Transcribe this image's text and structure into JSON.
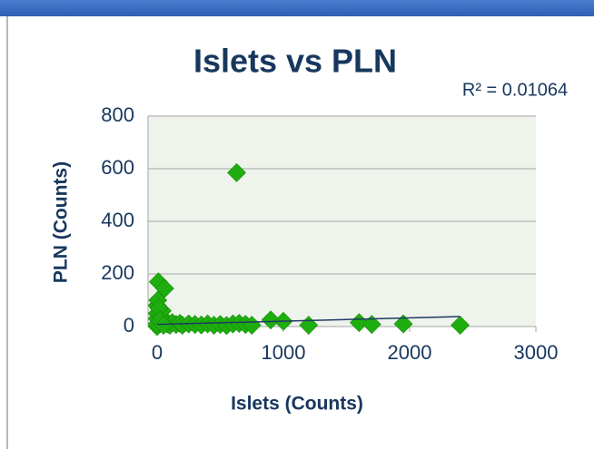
{
  "chart_data": {
    "type": "scatter",
    "title": "Islets vs PLN",
    "annotation": "R² = 0.01064",
    "x_label": "Islets (Counts)",
    "y_label": "PLN (Counts)",
    "xlim": [
      0,
      3000
    ],
    "ylim": [
      0,
      800
    ],
    "xticks": [
      0,
      1000,
      2000,
      3000
    ],
    "yticks": [
      0,
      200,
      400,
      600,
      800
    ],
    "grid": true,
    "color": "#1fae0f",
    "series": [
      {
        "x": [
          0,
          0,
          0,
          0,
          0,
          10,
          20,
          30,
          40,
          60,
          80,
          100,
          120,
          150,
          180,
          200,
          250,
          300,
          350,
          400,
          450,
          500,
          550,
          600,
          630,
          650,
          700,
          750,
          900,
          1000,
          1200,
          1600,
          1700,
          1950,
          2400,
          5,
          15,
          25,
          50
        ],
        "values": [
          0,
          10,
          30,
          50,
          80,
          170,
          20,
          40,
          60,
          145,
          10,
          5,
          15,
          8,
          12,
          5,
          10,
          8,
          6,
          10,
          5,
          8,
          4,
          10,
          585,
          12,
          8,
          5,
          25,
          20,
          5,
          15,
          8,
          10,
          5,
          100,
          70,
          25,
          5
        ]
      }
    ],
    "trendline": {
      "x": [
        0,
        2400
      ],
      "values": [
        8,
        38
      ],
      "color": "#1f3864"
    }
  }
}
